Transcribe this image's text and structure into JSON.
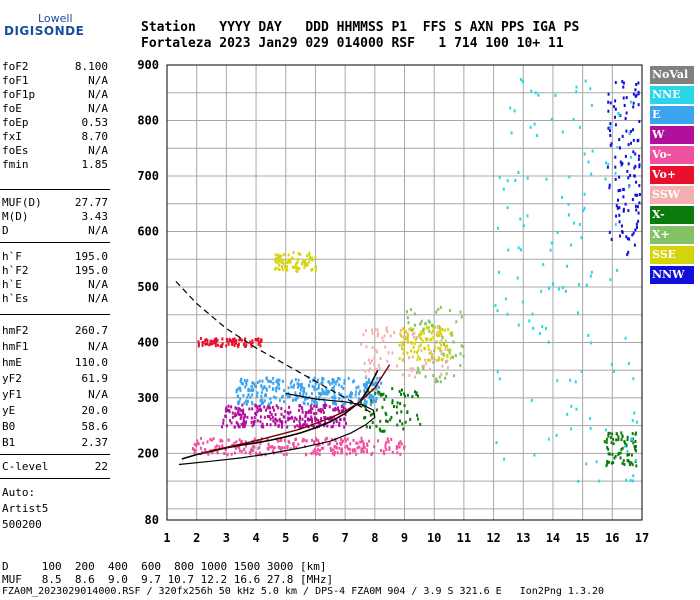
{
  "logo": {
    "top": "Lowell",
    "main": "DIGISONDE"
  },
  "header": {
    "row1": "Station   YYYY DAY   DDD HHMMSS P1  FFS S AXN PPS IGA PS",
    "row2": "Fortaleza 2023 Jan29 029 014000 RSF   1 714 100 10+ 11"
  },
  "params": {
    "group1": [
      {
        "label": "foF2",
        "value": "8.100"
      },
      {
        "label": "foF1",
        "value": "N/A"
      },
      {
        "label": "foF1p",
        "value": "N/A"
      },
      {
        "label": "foE",
        "value": "N/A"
      },
      {
        "label": "foEp",
        "value": "0.53"
      },
      {
        "label": "fxI",
        "value": "8.70"
      },
      {
        "label": "foEs",
        "value": "N/A"
      },
      {
        "label": "fmin",
        "value": "1.85"
      }
    ],
    "group2": [
      {
        "label": "MUF(D)",
        "value": "27.77"
      },
      {
        "label": "M(D)",
        "value": "3.43"
      },
      {
        "label": "D",
        "value": "N/A"
      }
    ],
    "group3": [
      {
        "label": "h`F",
        "value": "195.0"
      },
      {
        "label": "h`F2",
        "value": "195.0"
      },
      {
        "label": "h`E",
        "value": "N/A"
      },
      {
        "label": "h`Es",
        "value": "N/A"
      }
    ],
    "group4": [
      {
        "label": "hmF2",
        "value": "260.7"
      },
      {
        "label": "hmF1",
        "value": "N/A"
      },
      {
        "label": "hmE",
        "value": "110.0"
      },
      {
        "label": "yF2",
        "value": "61.9"
      },
      {
        "label": "yF1",
        "value": "N/A"
      },
      {
        "label": "yE",
        "value": "20.0"
      },
      {
        "label": "B0",
        "value": "58.6"
      },
      {
        "label": "B1",
        "value": "2.37"
      }
    ],
    "group5": [
      {
        "label": "C-level",
        "value": "22"
      }
    ],
    "auto": [
      "Auto:",
      "Artist5",
      "500200"
    ]
  },
  "legend": [
    {
      "label": "NoVal",
      "color": "#808080"
    },
    {
      "label": "NNE",
      "color": "#28d6e8"
    },
    {
      "label": "E",
      "color": "#3aa4f0"
    },
    {
      "label": "W",
      "color": "#b0109c"
    },
    {
      "label": "Vo-",
      "color": "#f050a0"
    },
    {
      "label": "Vo+",
      "color": "#e8102c"
    },
    {
      "label": "SSW",
      "color": "#f4b0b0"
    },
    {
      "label": "X-",
      "color": "#0a7a0a"
    },
    {
      "label": "X+",
      "color": "#84c064"
    },
    {
      "label": "SSE",
      "color": "#d4d40a"
    },
    {
      "label": "NNW",
      "color": "#1010d8"
    }
  ],
  "chart_data": {
    "type": "scatter",
    "xlim": [
      1,
      17
    ],
    "ylim": [
      80,
      900
    ],
    "x_ticks": [
      1,
      2,
      3,
      4,
      5,
      6,
      7,
      8,
      9,
      10,
      11,
      12,
      13,
      14,
      15,
      16,
      17
    ],
    "y_ticks": [
      80,
      200,
      300,
      400,
      500,
      600,
      700,
      800,
      900
    ],
    "grid": true,
    "trace_o": [
      [
        1.5,
        190
      ],
      [
        2.0,
        198
      ],
      [
        2.5,
        204
      ],
      [
        3.0,
        210
      ],
      [
        3.5,
        215
      ],
      [
        4.0,
        219
      ],
      [
        4.5,
        224
      ],
      [
        5.0,
        230
      ],
      [
        5.5,
        237
      ],
      [
        6.0,
        246
      ],
      [
        6.5,
        257
      ],
      [
        7.0,
        272
      ],
      [
        7.5,
        293
      ],
      [
        7.8,
        318
      ],
      [
        8.1,
        350
      ]
    ],
    "trace_x": [
      [
        2.1,
        198
      ],
      [
        2.5,
        205
      ],
      [
        3.0,
        211
      ],
      [
        3.5,
        217
      ],
      [
        4.0,
        223
      ],
      [
        4.5,
        230
      ],
      [
        5.0,
        237
      ],
      [
        5.5,
        244
      ],
      [
        6.0,
        254
      ],
      [
        6.5,
        264
      ],
      [
        7.0,
        276
      ],
      [
        7.5,
        293
      ],
      [
        8.0,
        318
      ],
      [
        8.5,
        360
      ]
    ],
    "profile_solid": [
      [
        1.4,
        180
      ],
      [
        2.5,
        186
      ],
      [
        3.5,
        192
      ],
      [
        4.5,
        200
      ],
      [
        5.5,
        210
      ],
      [
        6.5,
        222
      ],
      [
        7.2,
        237
      ],
      [
        7.7,
        252
      ],
      [
        8.0,
        265
      ],
      [
        7.95,
        278
      ],
      [
        7.6,
        287
      ],
      [
        7.0,
        293
      ],
      [
        6.0,
        298
      ],
      [
        5.0,
        308
      ]
    ],
    "profile_dashed": [
      [
        1.3,
        510
      ],
      [
        2.0,
        470
      ],
      [
        3.0,
        425
      ],
      [
        4.0,
        390
      ],
      [
        5.0,
        360
      ],
      [
        6.0,
        330
      ],
      [
        7.0,
        300
      ],
      [
        7.5,
        285
      ],
      [
        8.0,
        270
      ]
    ],
    "clusters": [
      {
        "color": "#f050a0",
        "xr": [
          1.8,
          9.0
        ],
        "yr": [
          200,
          230
        ],
        "n": 260
      },
      {
        "color": "#3aa4f0",
        "xr": [
          3.3,
          8.2
        ],
        "yr": [
          290,
          340
        ],
        "n": 320
      },
      {
        "color": "#b0109c",
        "xr": [
          2.8,
          7.0
        ],
        "yr": [
          250,
          290
        ],
        "n": 260
      },
      {
        "color": "#e8102c",
        "xr": [
          2.0,
          4.2
        ],
        "yr": [
          395,
          410
        ],
        "n": 90
      },
      {
        "color": "#d4d40a",
        "xr": [
          4.6,
          6.0
        ],
        "yr": [
          530,
          565
        ],
        "n": 80
      },
      {
        "color": "#d4d40a",
        "xr": [
          8.8,
          10.6
        ],
        "yr": [
          370,
          430
        ],
        "n": 120
      },
      {
        "color": "#0a7a0a",
        "xr": [
          15.7,
          16.8
        ],
        "yr": [
          180,
          240
        ],
        "n": 70
      },
      {
        "color": "#1010d8",
        "xr": [
          15.8,
          16.9
        ],
        "yr": [
          560,
          880
        ],
        "n": 120
      },
      {
        "color": "#28d6e8",
        "xr": [
          12.0,
          16.8
        ],
        "yr": [
          150,
          880
        ],
        "n": 140
      },
      {
        "color": "#84c064",
        "xr": [
          9.0,
          11.0
        ],
        "yr": [
          330,
          470
        ],
        "n": 60
      },
      {
        "color": "#f4b0b0",
        "xr": [
          7.5,
          10.5
        ],
        "yr": [
          340,
          430
        ],
        "n": 80
      },
      {
        "color": "#0a7a0a",
        "xr": [
          7.5,
          9.5
        ],
        "yr": [
          240,
          320
        ],
        "n": 70
      }
    ]
  },
  "footer": {
    "d_row": "D     100  200  400  600  800 1000 1500 3000 [km]",
    "muf_row": "MUF   8.5  8.6  9.0  9.7 10.7 12.2 16.6 27.8 [MHz]",
    "info_row": "FZA0M_2023029014000.RSF / 320fx256h 50 kHz 5.0 km / DPS-4 FZA0M 904 / 3.9 S 321.6 E   Ion2Png 1.3.20"
  }
}
